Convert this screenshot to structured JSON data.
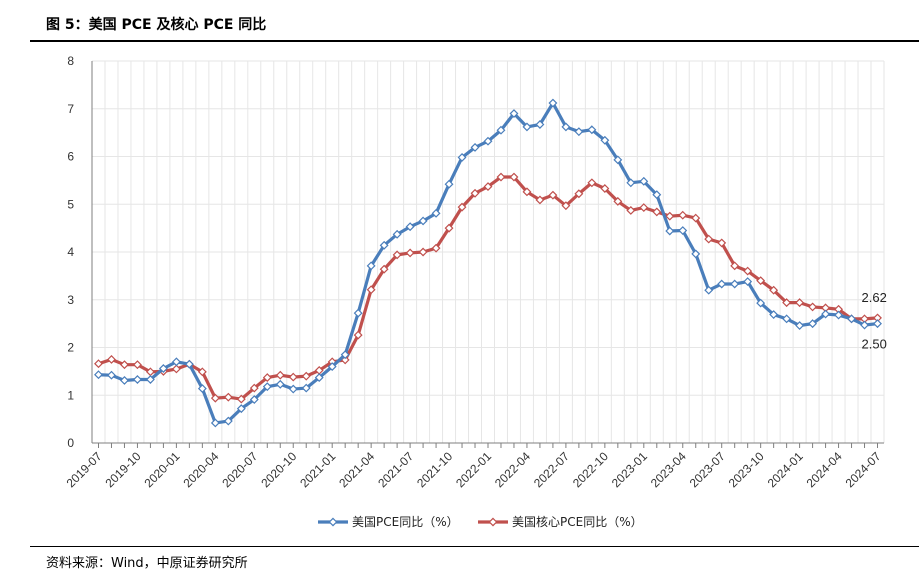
{
  "header": {
    "title": "图 5：美国 PCE 及核心 PCE 同比"
  },
  "footer": {
    "source": "资料来源：Wind，中原证券研究所"
  },
  "chart_data": {
    "type": "line",
    "title": "图 5：美国 PCE 及核心 PCE 同比",
    "xlabel": "",
    "ylabel": "",
    "ylim": [
      0,
      8
    ],
    "yticks": [
      "0",
      "1",
      "2",
      "3",
      "4",
      "5",
      "6",
      "7",
      "8"
    ],
    "grid": true,
    "legend": "bottom",
    "x": [
      "2019-07",
      "2019-08",
      "2019-09",
      "2019-10",
      "2019-11",
      "2019-12",
      "2020-01",
      "2020-02",
      "2020-03",
      "2020-04",
      "2020-05",
      "2020-06",
      "2020-07",
      "2020-08",
      "2020-09",
      "2020-10",
      "2020-11",
      "2020-12",
      "2021-01",
      "2021-02",
      "2021-03",
      "2021-04",
      "2021-05",
      "2021-06",
      "2021-07",
      "2021-08",
      "2021-09",
      "2021-10",
      "2021-11",
      "2021-12",
      "2022-01",
      "2022-02",
      "2022-03",
      "2022-04",
      "2022-05",
      "2022-06",
      "2022-07",
      "2022-08",
      "2022-09",
      "2022-10",
      "2022-11",
      "2022-12",
      "2023-01",
      "2023-02",
      "2023-03",
      "2023-04",
      "2023-05",
      "2023-06",
      "2023-07",
      "2023-08",
      "2023-09",
      "2023-10",
      "2023-11",
      "2023-12",
      "2024-01",
      "2024-02",
      "2024-03",
      "2024-04",
      "2024-05",
      "2024-06",
      "2024-07"
    ],
    "xtick_labels": [
      "2019-07",
      "2019-10",
      "2020-01",
      "2020-04",
      "2020-07",
      "2020-10",
      "2021-01",
      "2021-04",
      "2021-07",
      "2021-10",
      "2022-01",
      "2022-04",
      "2022-07",
      "2022-10",
      "2023-01",
      "2023-04",
      "2023-07",
      "2023-10",
      "2024-01",
      "2024-04",
      "2024-07"
    ],
    "series": [
      {
        "name": "美国PCE同比（%）",
        "color": "#4a7ebb",
        "values": [
          1.43,
          1.42,
          1.31,
          1.33,
          1.33,
          1.56,
          1.7,
          1.65,
          1.14,
          0.42,
          0.46,
          0.72,
          0.91,
          1.18,
          1.23,
          1.13,
          1.15,
          1.37,
          1.6,
          1.85,
          2.72,
          3.71,
          4.14,
          4.37,
          4.53,
          4.65,
          4.81,
          5.42,
          5.98,
          6.19,
          6.32,
          6.55,
          6.9,
          6.62,
          6.67,
          7.12,
          6.62,
          6.52,
          6.56,
          6.34,
          5.93,
          5.45,
          5.48,
          5.2,
          4.44,
          4.45,
          3.96,
          3.2,
          3.33,
          3.33,
          3.38,
          2.93,
          2.69,
          2.6,
          2.46,
          2.5,
          2.7,
          2.68,
          2.6,
          2.47,
          2.5
        ]
      },
      {
        "name": "美国核心PCE同比（%）",
        "color": "#c0504d",
        "values": [
          1.66,
          1.75,
          1.64,
          1.64,
          1.49,
          1.5,
          1.55,
          1.65,
          1.49,
          0.94,
          0.96,
          0.92,
          1.15,
          1.37,
          1.42,
          1.38,
          1.4,
          1.52,
          1.7,
          1.74,
          2.26,
          3.21,
          3.64,
          3.94,
          3.98,
          4.0,
          4.08,
          4.5,
          4.94,
          5.23,
          5.37,
          5.57,
          5.57,
          5.26,
          5.09,
          5.19,
          4.97,
          5.22,
          5.45,
          5.33,
          5.06,
          4.87,
          4.93,
          4.84,
          4.75,
          4.77,
          4.71,
          4.27,
          4.19,
          3.71,
          3.6,
          3.4,
          3.2,
          2.94,
          2.94,
          2.85,
          2.83,
          2.8,
          2.6,
          2.6,
          2.62
        ]
      }
    ],
    "annotations": [
      "2.62",
      "2.50"
    ]
  }
}
